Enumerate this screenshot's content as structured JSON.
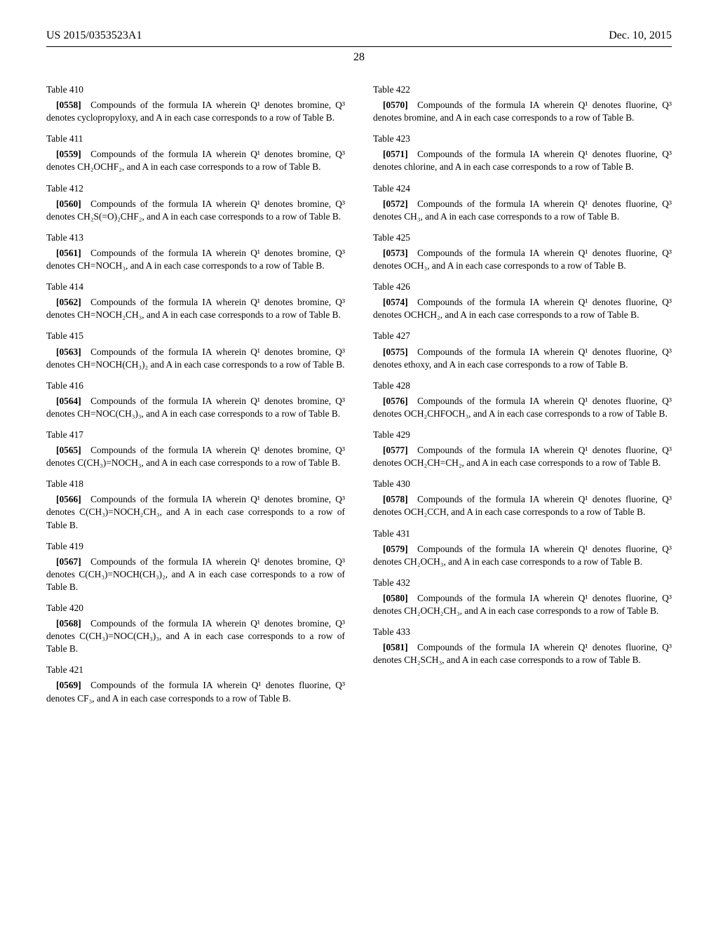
{
  "header": {
    "left": "US 2015/0353523A1",
    "right": "Dec. 10, 2015"
  },
  "pagenum": "28",
  "left_col": [
    {
      "table": "Table 410",
      "pnum": "[0558]",
      "body": "Compounds of the formula IA wherein Q¹ denotes bromine, Q³ denotes cyclopropyloxy, and A in each case corresponds to a row of Table B."
    },
    {
      "table": "Table 411",
      "pnum": "[0559]",
      "body": "Compounds of the formula IA wherein Q¹ denotes bromine, Q³ denotes CH₂OCHF₂, and A in each case corresponds to a row of Table B."
    },
    {
      "table": "Table 412",
      "pnum": "[0560]",
      "body": "Compounds of the formula IA wherein Q¹ denotes bromine, Q³ denotes CH₂S(=O)₂CHF₂, and A in each case corresponds to a row of Table B."
    },
    {
      "table": "Table 413",
      "pnum": "[0561]",
      "body": "Compounds of the formula IA wherein Q¹ denotes bromine, Q³ denotes CH=NOCH₃, and A in each case corresponds to a row of Table B."
    },
    {
      "table": "Table 414",
      "pnum": "[0562]",
      "body": "Compounds of the formula IA wherein Q¹ denotes bromine, Q³ denotes CH=NOCH₂CH₃, and A in each case corresponds to a row of Table B."
    },
    {
      "table": "Table 415",
      "pnum": "[0563]",
      "body": "Compounds of the formula IA wherein Q¹ denotes bromine, Q³ denotes CH=NOCH(CH₃)₂ and A in each case corresponds to a row of Table B."
    },
    {
      "table": "Table 416",
      "pnum": "[0564]",
      "body": "Compounds of the formula IA wherein Q¹ denotes bromine, Q³ denotes CH=NOC(CH₃)₃, and A in each case corresponds to a row of Table B."
    },
    {
      "table": "Table 417",
      "pnum": "[0565]",
      "body": "Compounds of the formula IA wherein Q¹ denotes bromine, Q³ denotes C(CH₃)=NOCH₃, and A in each case corresponds to a row of Table B."
    },
    {
      "table": "Table 418",
      "pnum": "[0566]",
      "body": "Compounds of the formula IA wherein Q¹ denotes bromine, Q³ denotes C(CH₃)=NOCH₂CH₃, and A in each case corresponds to a row of Table B."
    },
    {
      "table": "Table 419",
      "pnum": "[0567]",
      "body": "Compounds of the formula IA wherein Q¹ denotes bromine, Q³ denotes C(CH₃)=NOCH(CH₃)₂, and A in each case corresponds to a row of Table B."
    },
    {
      "table": "Table 420",
      "pnum": "[0568]",
      "body": "Compounds of the formula IA wherein Q¹ denotes bromine, Q³ denotes C(CH₃)=NOC(CH₃)₃, and A in each case corresponds to a row of Table B."
    },
    {
      "table": "Table 421",
      "pnum": "[0569]",
      "body": "Compounds of the formula IA wherein Q¹ denotes fluorine, Q³ denotes CF₃, and A in each case corresponds to a row of Table B."
    }
  ],
  "right_col": [
    {
      "table": "Table 422",
      "pnum": "[0570]",
      "body": "Compounds of the formula IA wherein Q¹ denotes fluorine, Q³ denotes bromine, and A in each case corresponds to a row of Table B."
    },
    {
      "table": "Table 423",
      "pnum": "[0571]",
      "body": "Compounds of the formula IA wherein Q¹ denotes fluorine, Q³ denotes chlorine, and A in each case corresponds to a row of Table B."
    },
    {
      "table": "Table 424",
      "pnum": "[0572]",
      "body": "Compounds of the formula IA wherein Q¹ denotes fluorine, Q³ denotes CH₃, and A in each case corresponds to a row of Table B."
    },
    {
      "table": "Table 425",
      "pnum": "[0573]",
      "body": "Compounds of the formula IA wherein Q¹ denotes fluorine, Q³ denotes OCH₃, and A in each case corresponds to a row of Table B."
    },
    {
      "table": "Table 426",
      "pnum": "[0574]",
      "body": "Compounds of the formula IA wherein Q¹ denotes fluorine, Q³ denotes OCHCH₂, and A in each case corresponds to a row of Table B."
    },
    {
      "table": "Table 427",
      "pnum": "[0575]",
      "body": "Compounds of the formula IA wherein Q¹ denotes fluorine, Q³ denotes ethoxy, and A in each case corresponds to a row of Table B."
    },
    {
      "table": "Table 428",
      "pnum": "[0576]",
      "body": "Compounds of the formula IA wherein Q¹ denotes fluorine, Q³ denotes OCH₂CHFOCH₃, and A in each case corresponds to a row of Table B."
    },
    {
      "table": "Table 429",
      "pnum": "[0577]",
      "body": "Compounds of the formula IA wherein Q¹ denotes fluorine, Q³ denotes OCH₂CH=CH₂, and A in each case corresponds to a row of Table B."
    },
    {
      "table": "Table 430",
      "pnum": "[0578]",
      "body": "Compounds of the formula IA wherein Q¹ denotes fluorine, Q³ denotes OCH₂CCH, and A in each case corresponds to a row of Table B."
    },
    {
      "table": "Table 431",
      "pnum": "[0579]",
      "body": "Compounds of the formula IA wherein Q¹ denotes fluorine, Q³ denotes CH₂OCH₃, and A in each case corresponds to a row of Table B."
    },
    {
      "table": "Table 432",
      "pnum": "[0580]",
      "body": "Compounds of the formula IA wherein Q¹ denotes fluorine, Q³ denotes CH₂OCH₂CH₃, and A in each case corresponds to a row of Table B."
    },
    {
      "table": "Table 433",
      "pnum": "[0581]",
      "body": "Compounds of the formula IA wherein Q¹ denotes fluorine, Q³ denotes CH₂SCH₃, and A in each case corresponds to a row of Table B."
    }
  ]
}
